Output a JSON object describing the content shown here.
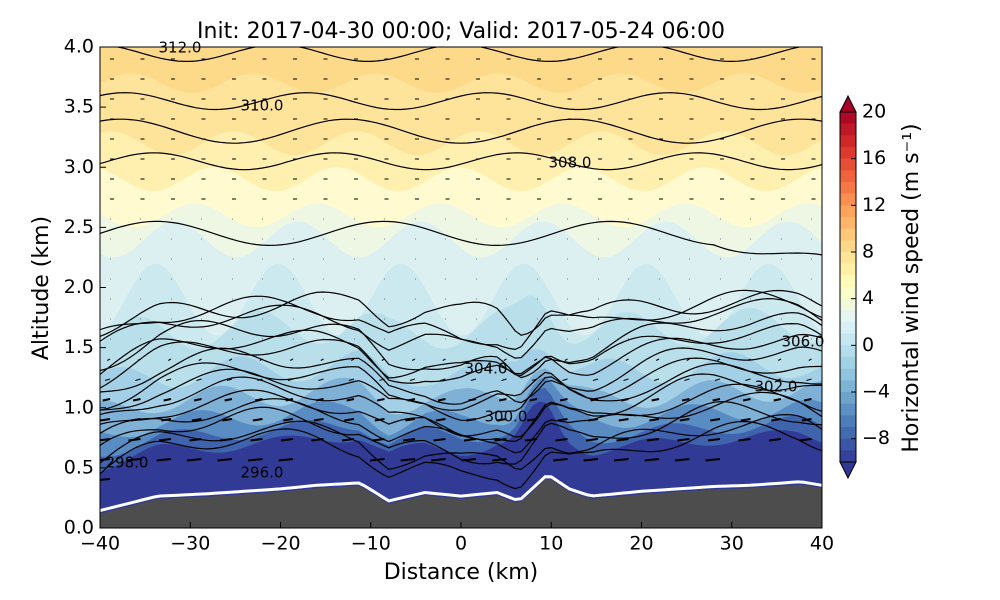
{
  "chart_data": {
    "type": "cross-section",
    "title": "Init: 2017-04-30 00:00; Valid: 2017-05-24 06:00",
    "x_label": "Distance (km)",
    "y_label": "Altitude (km)",
    "xlim": [
      -40,
      40
    ],
    "xticks": [
      {
        "value": -40,
        "label": "−40"
      },
      {
        "value": -30,
        "label": "−30"
      },
      {
        "value": -20,
        "label": "−20"
      },
      {
        "value": -10,
        "label": "−10"
      },
      0,
      10,
      20,
      30,
      40
    ],
    "ylim": [
      0,
      4
    ],
    "yticks": [
      {
        "value": 0,
        "label": "0.0"
      },
      {
        "value": 0.5,
        "label": "0.5"
      },
      {
        "value": 1,
        "label": "1.0"
      },
      {
        "value": 1.5,
        "label": "1.5"
      },
      {
        "value": 2,
        "label": "2.0"
      },
      {
        "value": 2.5,
        "label": "2.5"
      },
      {
        "value": 3,
        "label": "3.0"
      },
      {
        "value": 3.5,
        "label": "3.5"
      },
      {
        "value": 4,
        "label": "4.0"
      }
    ],
    "contours": {
      "levels": [
        296,
        298,
        300,
        302,
        304,
        306,
        308,
        310,
        312
      ],
      "value_labels": [
        "296.0",
        "298.0",
        "300.0",
        "302.0",
        "304.0",
        "306.0",
        "308.0",
        "310.0",
        "312.0"
      ]
    },
    "colorbar": {
      "label": "Horizontal wind speed (m s⁻¹)",
      "clim": [
        -10,
        20
      ],
      "ticks": [
        {
          "value": -8,
          "label": "−8"
        },
        {
          "value": -4,
          "label": "−4"
        },
        0,
        4,
        8,
        12,
        16,
        20
      ],
      "colors": [
        "#313695",
        "#4575b4",
        "#74add1",
        "#abd9e9",
        "#e0f3f8",
        "#ffffbf",
        "#fee090",
        "#fdae61",
        "#f46d43",
        "#d73027",
        "#a50026"
      ]
    }
  }
}
